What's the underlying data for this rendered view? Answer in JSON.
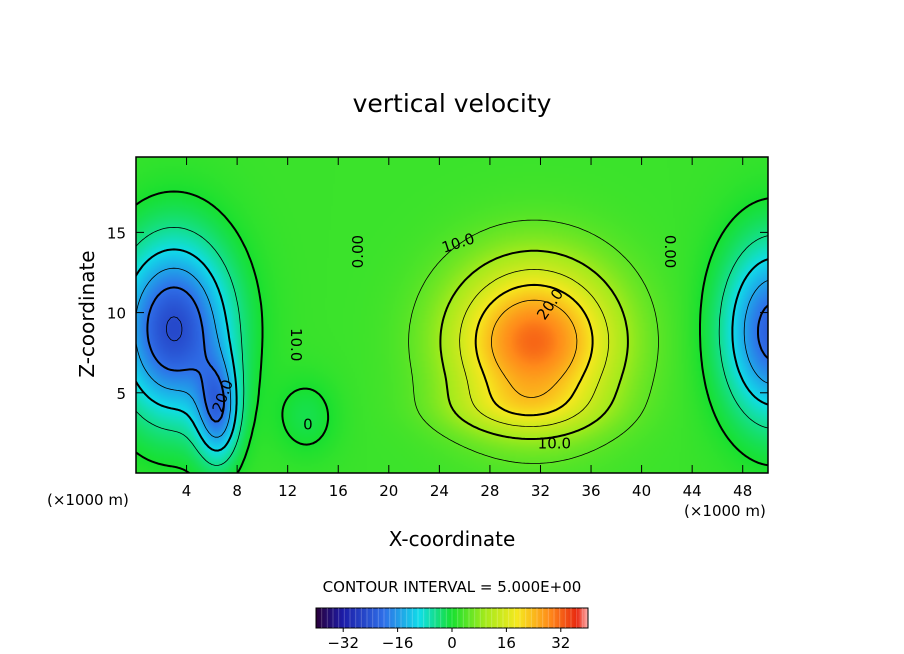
{
  "chart_data": {
    "type": "heatmap",
    "title": "vertical velocity",
    "xlabel": "X-coordinate",
    "ylabel": "Z-coordinate",
    "x_unit_left": "(×1000 m)",
    "x_unit_right": "(×1000 m)",
    "xlim": [
      0,
      50
    ],
    "ylim": [
      0,
      19.7
    ],
    "x_ticks": [
      4,
      8,
      12,
      16,
      20,
      24,
      28,
      32,
      36,
      40,
      44,
      48
    ],
    "y_ticks": [
      5,
      10,
      15
    ],
    "contour_interval_text": "CONTOUR INTERVAL = 5.000E+00",
    "colorbar": {
      "min": -40,
      "max": 40,
      "ticks": [
        -32,
        -16,
        0,
        16,
        32
      ],
      "tick_labels": [
        "−32",
        "−16",
        "0",
        "16",
        "32"
      ]
    },
    "contour_labels": [
      {
        "text": "0.00",
        "x": 17.6,
        "y": 13.8,
        "angle": -90
      },
      {
        "text": "10.0",
        "x": 25.5,
        "y": 14.3,
        "angle": -18
      },
      {
        "text": "20.0",
        "x": 32.8,
        "y": 10.5,
        "angle": -55
      },
      {
        "text": "10.0",
        "x": 33.1,
        "y": 1.8,
        "angle": 0
      },
      {
        "text": "0.00",
        "x": 42.2,
        "y": 13.8,
        "angle": 90
      },
      {
        "text": "10.0",
        "x": 12.6,
        "y": 8.0,
        "angle": 90
      },
      {
        "text": "20.0",
        "x": 6.9,
        "y": 4.8,
        "angle": -70
      },
      {
        "text": "0",
        "x": 13.6,
        "y": 3.0,
        "angle": 0
      }
    ],
    "field_features": [
      {
        "name": "updraft-core",
        "x": 31.5,
        "z": 8.5,
        "peak": 30
      },
      {
        "name": "downdraft-left",
        "x": 3.5,
        "z": 8.5,
        "peak": -30
      },
      {
        "name": "downdraft-right",
        "x": 49.5,
        "z": 8.5,
        "peak": -26
      },
      {
        "name": "downdraft-plume",
        "x": 6.5,
        "z": 4,
        "peak": -22
      }
    ]
  }
}
